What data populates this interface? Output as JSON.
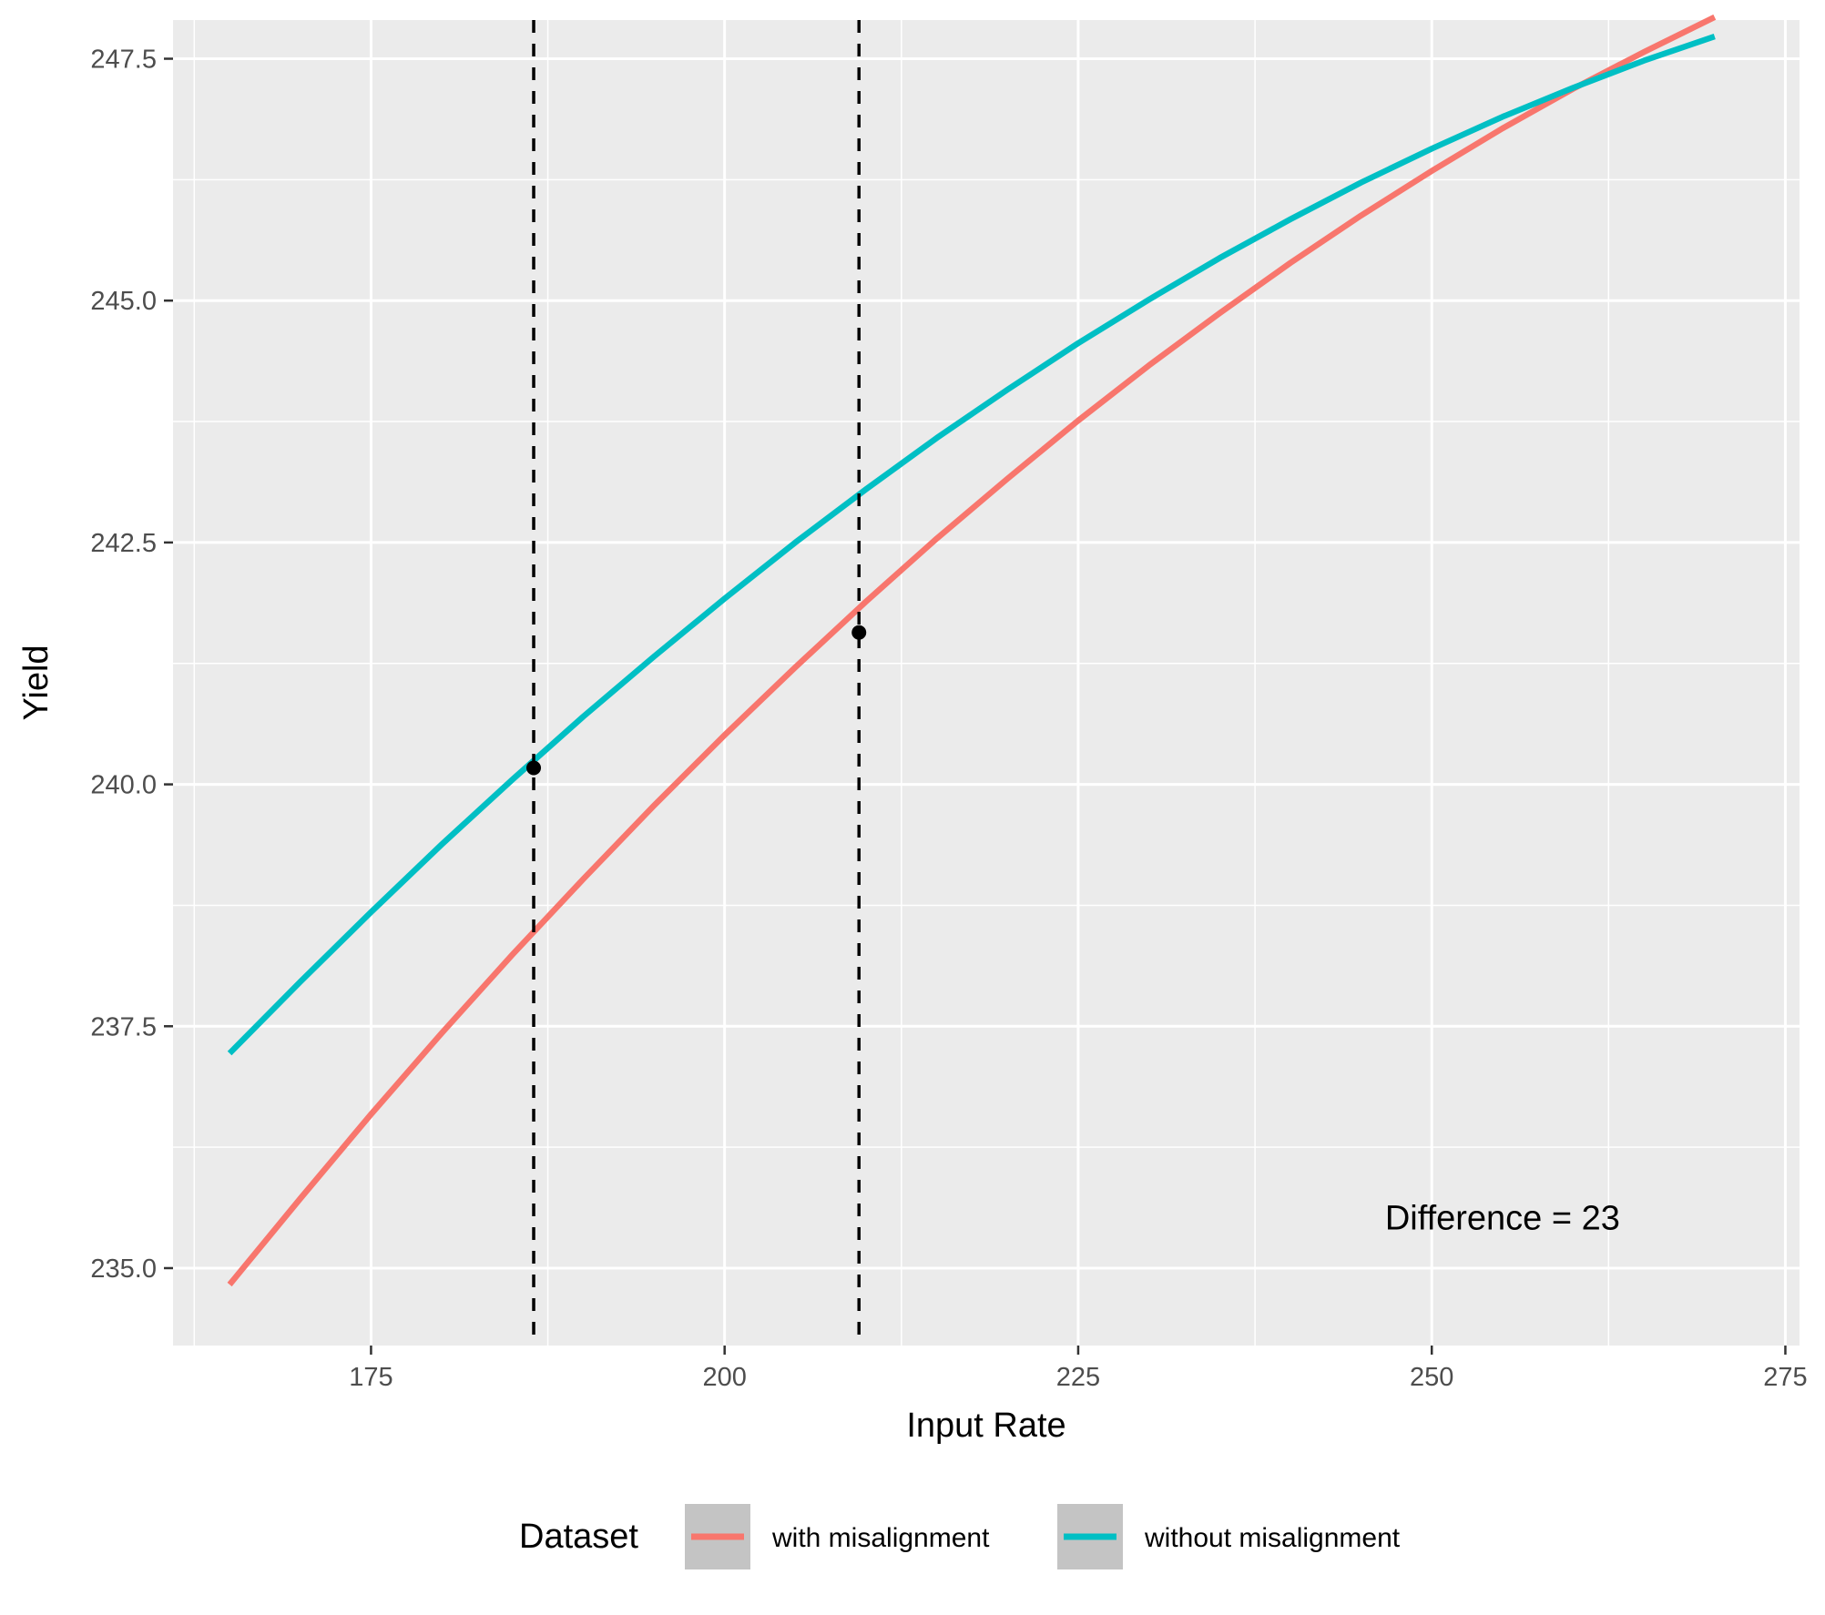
{
  "chart_data": {
    "type": "line",
    "xlabel": "Input Rate",
    "ylabel": "Yield",
    "xlim": [
      161,
      276
    ],
    "ylim": [
      234.2,
      247.9
    ],
    "x_ticks": [
      175,
      200,
      225,
      250,
      275
    ],
    "x_tick_labels": [
      "175",
      "200",
      "225",
      "250",
      "275"
    ],
    "y_ticks": [
      235.0,
      237.5,
      240.0,
      242.5,
      245.0,
      247.5
    ],
    "y_tick_labels": [
      "235.0",
      "237.5",
      "240.0",
      "242.5",
      "245.0",
      "247.5"
    ],
    "grid": true,
    "legend": {
      "title": "Dataset",
      "position": "bottom"
    },
    "series": [
      {
        "name": "with misalignment",
        "color": "#F8766D",
        "x": [
          165,
          170,
          175,
          180,
          185,
          190,
          195,
          200,
          205,
          210,
          215,
          220,
          225,
          230,
          235,
          240,
          245,
          250,
          255,
          260,
          265,
          270
        ],
        "y": [
          234.83,
          235.72,
          236.59,
          237.43,
          238.24,
          239.02,
          239.78,
          240.51,
          241.21,
          241.89,
          242.54,
          243.16,
          243.76,
          244.33,
          244.87,
          245.39,
          245.88,
          246.34,
          246.78,
          247.19,
          247.57,
          247.93
        ]
      },
      {
        "name": "without misalignment",
        "color": "#00BFC4",
        "x": [
          165,
          170,
          175,
          180,
          185,
          190,
          195,
          200,
          205,
          210,
          215,
          220,
          225,
          230,
          235,
          240,
          245,
          250,
          255,
          260,
          265,
          270
        ],
        "y": [
          237.22,
          237.96,
          238.68,
          239.38,
          240.05,
          240.7,
          241.32,
          241.92,
          242.5,
          243.05,
          243.58,
          244.08,
          244.56,
          245.01,
          245.44,
          245.84,
          246.22,
          246.57,
          246.9,
          247.2,
          247.48,
          247.73
        ]
      }
    ],
    "vlines": [
      {
        "x": 186.5,
        "style": "dashed",
        "color": "#000000"
      },
      {
        "x": 209.5,
        "style": "dashed",
        "color": "#000000"
      }
    ],
    "points": [
      {
        "x": 186.5,
        "y": 240.17,
        "color": "#000000"
      },
      {
        "x": 209.5,
        "y": 241.57,
        "color": "#000000"
      }
    ],
    "annotation": {
      "text": "Difference = 23",
      "x": 255,
      "y": 235.4
    },
    "panel_background": "#EBEBEB",
    "grid_color": "#FFFFFF"
  }
}
